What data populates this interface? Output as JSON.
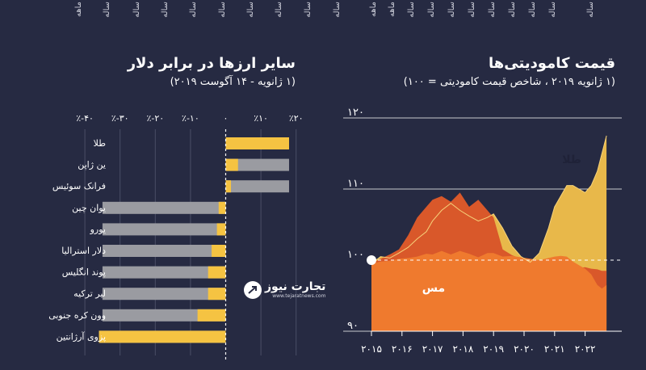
{
  "top_strip": {
    "left_labels": [
      "ماهه",
      "ساله",
      "ساله",
      "ساله",
      "ساله",
      "ساله",
      "ساله",
      "ساله",
      "ساله",
      "ساله"
    ],
    "right_labels": [
      "ماهه",
      "ماهه",
      "ساله",
      "ساله",
      "ساله",
      "ساله",
      "ساله",
      "ساله",
      "ساله",
      "ساله",
      "ساله"
    ]
  },
  "logo": {
    "name": "تجارت نیوز",
    "url": "www.tejaratnews.com"
  },
  "colors": {
    "background": "#262a42",
    "yellow": "#f5c342",
    "gray": "#9a9ba1",
    "orange": "#ef7a2e",
    "dark_orange": "#d9582a",
    "gold": "#e8b84a"
  },
  "chart_data": [
    {
      "type": "bar",
      "title": "سایر ارزها در برابر دلار",
      "subtitle": "(۱ ژانویه - ۱۴ آگوست ۲۰۱۹)",
      "xlim": [
        -40,
        20
      ],
      "x_ticks": [
        -40,
        -30,
        -20,
        -10,
        0,
        10,
        20
      ],
      "x_tick_labels": [
        "٪-۴۰",
        "٪-۳۰",
        "٪-۲۰",
        "٪-۱۰",
        "۰",
        "٪۱۰",
        "٪۲۰"
      ],
      "categories": [
        "طلا",
        "ین ژاپن",
        "فرانک سوئیس",
        "یوان چین",
        "یورو",
        "دلار استرالیا",
        "پوند انگلیس",
        "لیر ترکیه",
        "وون کره جنوبی",
        "پزوی آرژانتین"
      ],
      "series": [
        {
          "values": [
            18,
            3.5,
            1.5,
            -2,
            -2.5,
            -4,
            -5,
            -5,
            -8,
            -36
          ]
        }
      ],
      "range_values": [
        18,
        18,
        18,
        -35,
        -35,
        -35,
        -35,
        -35,
        -35,
        -36
      ]
    },
    {
      "type": "area",
      "title": "قیمت کامودیتی‌ها",
      "subtitle": "(۱ ژانویه ۲۰۱۹ ، شاخص قیمت کامودیتی = ۱۰۰)",
      "ylim": [
        90,
        120
      ],
      "y_ticks": [
        90,
        100,
        110,
        120
      ],
      "y_tick_labels": [
        "۹۰",
        "۱۰۰",
        "۱۱۰",
        "۱۲۰"
      ],
      "x_ticks": [
        2015,
        2016,
        2017,
        2018,
        2019,
        2020,
        2021,
        2022
      ],
      "x_tick_labels": [
        "۲۰۱۵",
        "۲۰۱۶",
        "۲۰۱۷",
        "۲۰۱۸",
        "۲۰۱۹",
        "۲۰۲۰",
        "۲۰۲۱",
        "۲۰۲۲"
      ],
      "xlim": [
        2015,
        2022.8
      ],
      "baseline": 100,
      "annotations": [
        "طلا",
        "مس"
      ],
      "x": [
        2015.0,
        2015.3,
        2015.6,
        2015.9,
        2016.2,
        2016.5,
        2016.8,
        2017.0,
        2017.3,
        2017.6,
        2017.9,
        2018.2,
        2018.5,
        2018.8,
        2019.0,
        2019.3,
        2019.6,
        2019.9,
        2020.2,
        2020.5,
        2020.8,
        2021.0,
        2021.2,
        2021.4,
        2021.6,
        2021.8,
        2022.0,
        2022.2,
        2022.4,
        2022.55,
        2022.7
      ],
      "series": [
        {
          "name": "طلا",
          "values": [
            99.5,
            100.5,
            100.3,
            101.0,
            101.8,
            103.0,
            104.0,
            105.5,
            107.0,
            108.0,
            107.0,
            106.2,
            105.5,
            106.0,
            106.5,
            104.5,
            102.0,
            100.5,
            99.7,
            101.0,
            104.5,
            107.5,
            109.0,
            110.5,
            110.5,
            110.0,
            109.5,
            110.5,
            112.5,
            115.0,
            117.5
          ]
        },
        {
          "name": "",
          "values": [
            99.5,
            100.2,
            100.8,
            101.5,
            103.5,
            106.0,
            107.5,
            108.5,
            109.0,
            108.2,
            109.5,
            107.5,
            108.5,
            107.0,
            106.0,
            101.5,
            100.7,
            100.2,
            99.5,
            99.7,
            100.3,
            100.3,
            99.8,
            99.2,
            99.0,
            98.9,
            99.0,
            98.8,
            98.7,
            98.5,
            98.5
          ]
        },
        {
          "name": "مس",
          "values": [
            99.5,
            99.8,
            99.9,
            100.2,
            100.3,
            100.5,
            100.9,
            100.8,
            101.3,
            100.8,
            101.3,
            100.9,
            100.4,
            101.0,
            101.0,
            100.5,
            100.6,
            100.4,
            100.2,
            100.0,
            100.3,
            100.5,
            100.6,
            100.5,
            99.8,
            99.3,
            98.8,
            98.0,
            96.5,
            96.0,
            96.5
          ]
        }
      ]
    }
  ]
}
